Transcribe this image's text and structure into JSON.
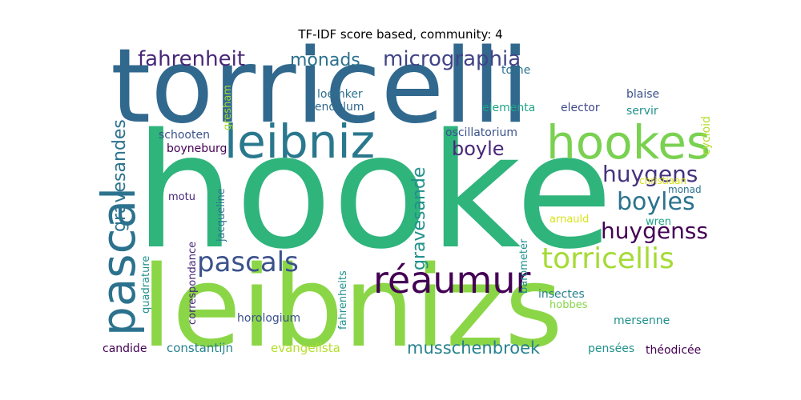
{
  "chart_data": {
    "type": "wordcloud",
    "title": "TF-IDF score based, community: 4",
    "words": [
      {
        "text": "hooke",
        "weight": 1.0,
        "color": "#2fb47c"
      },
      {
        "text": "leibnizs",
        "weight": 0.92,
        "color": "#8bd646"
      },
      {
        "text": "torricelli",
        "weight": 0.88,
        "color": "#31688e"
      },
      {
        "text": "leibniz",
        "weight": 0.45,
        "color": "#2a788e"
      },
      {
        "text": "hookes",
        "weight": 0.45,
        "color": "#7ad151"
      },
      {
        "text": "pascal",
        "weight": 0.44,
        "color": "#2c728e"
      },
      {
        "text": "réaumur",
        "weight": 0.36,
        "color": "#440154"
      },
      {
        "text": "torricellis",
        "weight": 0.28,
        "color": "#a5db36"
      },
      {
        "text": "pascals",
        "weight": 0.28,
        "color": "#3b528b"
      },
      {
        "text": "boyles",
        "weight": 0.26,
        "color": "#2c728e"
      },
      {
        "text": "huygens",
        "weight": 0.26,
        "color": "#46327e"
      },
      {
        "text": "huygenss",
        "weight": 0.26,
        "color": "#440154"
      },
      {
        "text": "fahrenheit",
        "weight": 0.24,
        "color": "#482878"
      },
      {
        "text": "micrographia",
        "weight": 0.24,
        "color": "#414487"
      },
      {
        "text": "boyle",
        "weight": 0.23,
        "color": "#482878"
      },
      {
        "text": "monads",
        "weight": 0.2,
        "color": "#2c728e"
      },
      {
        "text": "gravesandes",
        "weight": 0.2,
        "color": "#2c728e"
      },
      {
        "text": "gravesande",
        "weight": 0.2,
        "color": "#21918c"
      },
      {
        "text": "musschenbroek",
        "weight": 0.19,
        "color": "#26828e"
      },
      {
        "text": "evangelista",
        "weight": 0.13,
        "color": "#b5de2b"
      },
      {
        "text": "constantijn",
        "weight": 0.13,
        "color": "#26828e"
      },
      {
        "text": "horologium",
        "weight": 0.12,
        "color": "#3b528b"
      },
      {
        "text": "oscillatorium",
        "weight": 0.12,
        "color": "#3b528b"
      },
      {
        "text": "elementa",
        "weight": 0.12,
        "color": "#20a386"
      },
      {
        "text": "elector",
        "weight": 0.12,
        "color": "#3e4989"
      },
      {
        "text": "blaise",
        "weight": 0.12,
        "color": "#3b528b"
      },
      {
        "text": "servir",
        "weight": 0.12,
        "color": "#21918c"
      },
      {
        "text": "loemker",
        "weight": 0.12,
        "color": "#2c728e"
      },
      {
        "text": "pendulum",
        "weight": 0.12,
        "color": "#31688e"
      },
      {
        "text": "schooten",
        "weight": 0.12,
        "color": "#3b528b"
      },
      {
        "text": "boyneburg",
        "weight": 0.12,
        "color": "#440154"
      },
      {
        "text": "candide",
        "weight": 0.12,
        "color": "#440154"
      },
      {
        "text": "mersenne",
        "weight": 0.12,
        "color": "#21918c"
      },
      {
        "text": "pensées",
        "weight": 0.12,
        "color": "#21918c"
      },
      {
        "text": "théodicée",
        "weight": 0.12,
        "color": "#440154"
      },
      {
        "text": "insectes",
        "weight": 0.12,
        "color": "#26828e"
      },
      {
        "text": "hobbes",
        "weight": 0.11,
        "color": "#86d549"
      },
      {
        "text": "motu",
        "weight": 0.11,
        "color": "#482878"
      },
      {
        "text": "arnauld",
        "weight": 0.11,
        "color": "#d8e219"
      },
      {
        "text": "wren",
        "weight": 0.11,
        "color": "#1fa088"
      },
      {
        "text": "monad",
        "weight": 0.11,
        "color": "#2c728e"
      },
      {
        "text": "christiaan",
        "weight": 0.11,
        "color": "#d8e219"
      },
      {
        "text": "tome",
        "weight": 0.11,
        "color": "#2c728e"
      },
      {
        "text": "cycloid",
        "weight": 0.11,
        "color": "#b5de2b"
      },
      {
        "text": "gresham",
        "weight": 0.11,
        "color": "#a5db36"
      },
      {
        "text": "jacqueline",
        "weight": 0.11,
        "color": "#2c728e"
      },
      {
        "text": "correspondance",
        "weight": 0.11,
        "color": "#482878"
      },
      {
        "text": "quadrature",
        "weight": 0.11,
        "color": "#21918c"
      },
      {
        "text": "fahrenheits",
        "weight": 0.11,
        "color": "#21918c"
      },
      {
        "text": "barometer",
        "weight": 0.11,
        "color": "#21918c"
      }
    ]
  }
}
